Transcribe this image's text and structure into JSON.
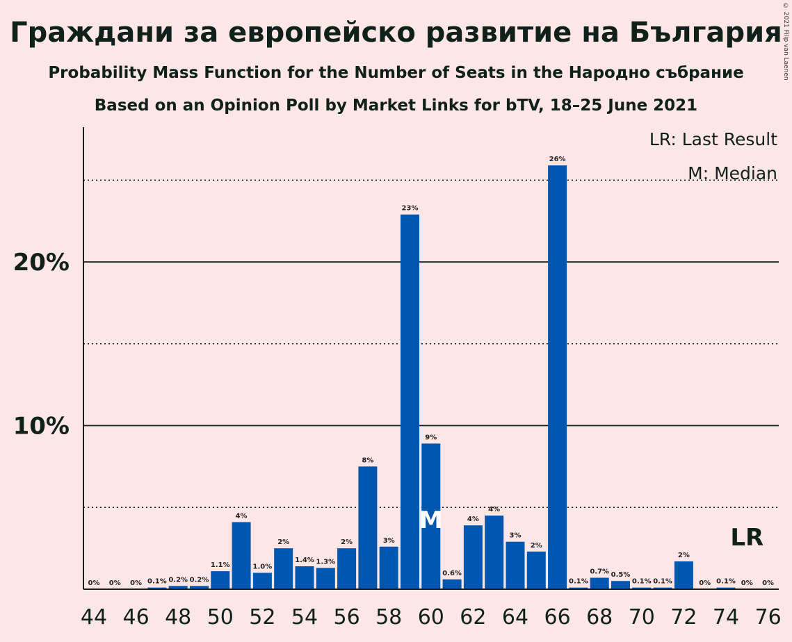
{
  "header": {
    "title": "Граждани за европейско развитие на България",
    "subtitle1": "Probability Mass Function for the Number of Seats in the Народно събрание",
    "subtitle2": "Based on an Opinion Poll by Market Links for bTV, 18–25 June 2021",
    "copyright": "© 2021 Filip van Laenen"
  },
  "legend": {
    "last_result": "LR: Last Result",
    "median": "M: Median"
  },
  "markers": {
    "median_label": "M",
    "median_seat": 60,
    "last_result_label": "LR",
    "last_result_seat": 75
  },
  "colors": {
    "bar": "#0057b0",
    "background": "#fde6e6",
    "text": "#10201a"
  },
  "chart_data": {
    "type": "bar",
    "x": [
      44,
      45,
      46,
      47,
      48,
      49,
      50,
      51,
      52,
      53,
      54,
      55,
      56,
      57,
      58,
      59,
      60,
      61,
      62,
      63,
      64,
      65,
      66,
      67,
      68,
      69,
      70,
      71,
      72,
      73,
      74,
      75,
      76
    ],
    "values": [
      0,
      0,
      0,
      0.1,
      0.2,
      0.2,
      1.1,
      4.1,
      1.0,
      2.5,
      1.4,
      1.3,
      2.5,
      7.5,
      2.6,
      22.9,
      8.9,
      0.6,
      3.9,
      4.5,
      2.9,
      2.3,
      25.9,
      0.1,
      0.7,
      0.5,
      0.1,
      0.1,
      1.7,
      0,
      0.1,
      0,
      0
    ],
    "data_labels": [
      "0%",
      "0%",
      "0%",
      "0.1%",
      "0.2%",
      "0.2%",
      "1.1%",
      "4%",
      "1.0%",
      "2%",
      "1.4%",
      "1.3%",
      "2%",
      "8%",
      "3%",
      "23%",
      "9%",
      "0.6%",
      "4%",
      "4%",
      "3%",
      "2%",
      "26%",
      "0.1%",
      "0.7%",
      "0.5%",
      "0.1%",
      "0.1%",
      "2%",
      "0%",
      "0.1%",
      "0%",
      "0%"
    ],
    "x_tick_labels": [
      "44",
      "46",
      "48",
      "50",
      "52",
      "54",
      "56",
      "58",
      "60",
      "62",
      "64",
      "66",
      "68",
      "70",
      "72",
      "74",
      "76"
    ],
    "y_tick_labels": [
      {
        "value": 10,
        "label": "10%"
      },
      {
        "value": 20,
        "label": "20%"
      }
    ],
    "ylim": [
      0,
      28
    ],
    "grid_solid": [
      10,
      20
    ],
    "grid_dotted": [
      5,
      15,
      25
    ],
    "xlabel": "",
    "ylabel": ""
  }
}
